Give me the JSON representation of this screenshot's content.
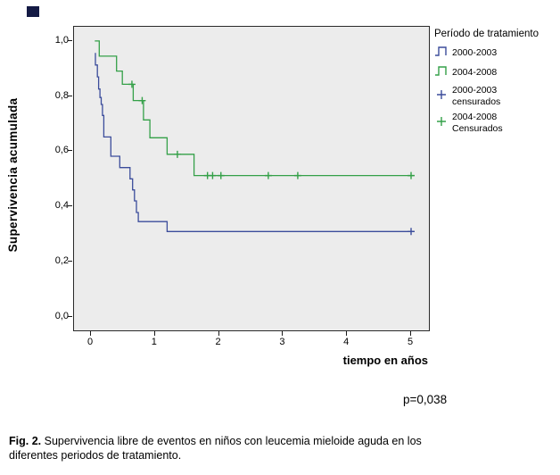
{
  "figure": {
    "y_axis_title": "Supervivencia acumulada",
    "x_axis_title": "tiempo en años",
    "p_value": "p=0,038",
    "caption_label": "Fig. 2.",
    "caption_text": "Supervivencia libre de eventos en niños con leucemia mieloide aguda en los\ndiferentes periodos de tratamiento."
  },
  "legend": {
    "title": "Período de tratamiento",
    "items": [
      {
        "label": "2000-2003",
        "glyph": "step-line-icon",
        "color": "#3B4C9B"
      },
      {
        "label": "2004-2008",
        "glyph": "step-line-icon",
        "color": "#34A048"
      },
      {
        "label": "2000-2003\ncensurados",
        "glyph": "plus-icon",
        "color": "#3B4C9B"
      },
      {
        "label": "2004-2008\nCensurados",
        "glyph": "plus-icon",
        "color": "#34A048"
      }
    ]
  },
  "chart_data": {
    "type": "line",
    "subtype": "kaplan-meier-step",
    "title": "",
    "xlabel": "tiempo en años",
    "ylabel": "Supervivencia acumulada",
    "xlim": [
      -0.26,
      5.31
    ],
    "ylim": [
      -0.056,
      1.052
    ],
    "grid": false,
    "plot_background": "#ececec",
    "legend_position": "right",
    "annotations": [
      {
        "text": "p=0,038"
      }
    ],
    "x_ticks": {
      "values": [
        0,
        1,
        2,
        3,
        4,
        5
      ],
      "labels": [
        "0",
        "1",
        "2",
        "3",
        "4",
        "5"
      ]
    },
    "y_ticks": {
      "values": [
        0,
        0.2,
        0.4,
        0.6,
        0.8,
        1.0
      ],
      "labels": [
        "0,0",
        "0,2",
        "0,4",
        "0,6",
        "0,8",
        "1,0"
      ]
    },
    "series": [
      {
        "name": "2000-2003",
        "color": "#3B4C9B",
        "points": [
          [
            0.07,
            0.957
          ],
          [
            0.07,
            0.913
          ],
          [
            0.1,
            0.913
          ],
          [
            0.1,
            0.87
          ],
          [
            0.12,
            0.87
          ],
          [
            0.12,
            0.826
          ],
          [
            0.14,
            0.826
          ],
          [
            0.14,
            0.795
          ],
          [
            0.16,
            0.795
          ],
          [
            0.16,
            0.77
          ],
          [
            0.18,
            0.77
          ],
          [
            0.18,
            0.73
          ],
          [
            0.2,
            0.73
          ],
          [
            0.2,
            0.652
          ],
          [
            0.31,
            0.652
          ],
          [
            0.31,
            0.582
          ],
          [
            0.45,
            0.582
          ],
          [
            0.45,
            0.541
          ],
          [
            0.61,
            0.541
          ],
          [
            0.61,
            0.5
          ],
          [
            0.65,
            0.5
          ],
          [
            0.65,
            0.46
          ],
          [
            0.68,
            0.46
          ],
          [
            0.68,
            0.42
          ],
          [
            0.71,
            0.42
          ],
          [
            0.71,
            0.378
          ],
          [
            0.74,
            0.378
          ],
          [
            0.74,
            0.345
          ],
          [
            1.19,
            0.345
          ],
          [
            1.19,
            0.309
          ],
          [
            5.05,
            0.309
          ]
        ],
        "censored": [
          [
            5.0,
            0.309
          ]
        ]
      },
      {
        "name": "2004-2008",
        "color": "#34A048",
        "points": [
          [
            0.06,
            1.0
          ],
          [
            0.13,
            1.0
          ],
          [
            0.13,
            0.945
          ],
          [
            0.4,
            0.945
          ],
          [
            0.4,
            0.891
          ],
          [
            0.49,
            0.891
          ],
          [
            0.49,
            0.843
          ],
          [
            0.66,
            0.843
          ],
          [
            0.66,
            0.784
          ],
          [
            0.82,
            0.784
          ],
          [
            0.82,
            0.714
          ],
          [
            0.92,
            0.714
          ],
          [
            0.92,
            0.649
          ],
          [
            1.19,
            0.649
          ],
          [
            1.19,
            0.589
          ],
          [
            1.61,
            0.589
          ],
          [
            1.61,
            0.512
          ],
          [
            5.03,
            0.512
          ]
        ],
        "censored": [
          [
            0.64,
            0.843
          ],
          [
            0.8,
            0.784
          ],
          [
            1.35,
            0.589
          ],
          [
            1.82,
            0.512
          ],
          [
            1.9,
            0.512
          ],
          [
            2.03,
            0.512
          ],
          [
            2.77,
            0.512
          ],
          [
            3.23,
            0.512
          ],
          [
            5.0,
            0.512
          ]
        ]
      }
    ]
  }
}
